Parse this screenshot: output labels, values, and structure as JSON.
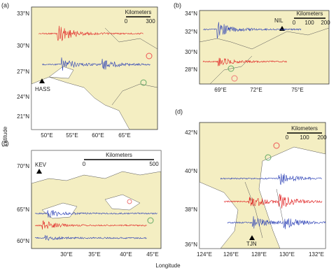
{
  "panels": [
    {
      "label": "(a)",
      "scale_title": "Kilometers",
      "scale_ticks": [
        "0",
        "300"
      ],
      "station": "HASS",
      "lat_ticks": [
        "33°N",
        "30°N",
        "27°N",
        "24°N",
        "21°N"
      ],
      "lon_ticks": [
        "50°E",
        "55°E",
        "60°E",
        "65°E"
      ]
    },
    {
      "label": "(b)",
      "scale_title": "Kilometers",
      "scale_ticks": [
        "0",
        "100",
        "200"
      ],
      "station": "NIL",
      "lat_ticks": [
        "34°N",
        "32°N",
        "30°N",
        "28°N"
      ],
      "lon_ticks": [
        "69°E",
        "72°E",
        "75°E"
      ]
    },
    {
      "label": "(c)",
      "scale_title": "Kilometers",
      "scale_ticks": [
        "0",
        "500"
      ],
      "station": "KEV",
      "lat_ticks": [
        "70°N",
        "65°N",
        "60°N"
      ],
      "lon_ticks": [
        "30°E",
        "35°E",
        "40°E",
        "45°E"
      ]
    },
    {
      "label": "(d)",
      "scale_title": "Kilometers",
      "scale_ticks": [
        "0",
        "100",
        "200"
      ],
      "station": "TJN",
      "lat_ticks": [
        "42°N",
        "40°N",
        "38°N",
        "36°N"
      ],
      "lon_ticks": [
        "124°E",
        "126°E",
        "128°E",
        "130°E",
        "132°E"
      ]
    }
  ],
  "y_axis_label": "Latitude",
  "x_axis_label": "Longitude"
}
